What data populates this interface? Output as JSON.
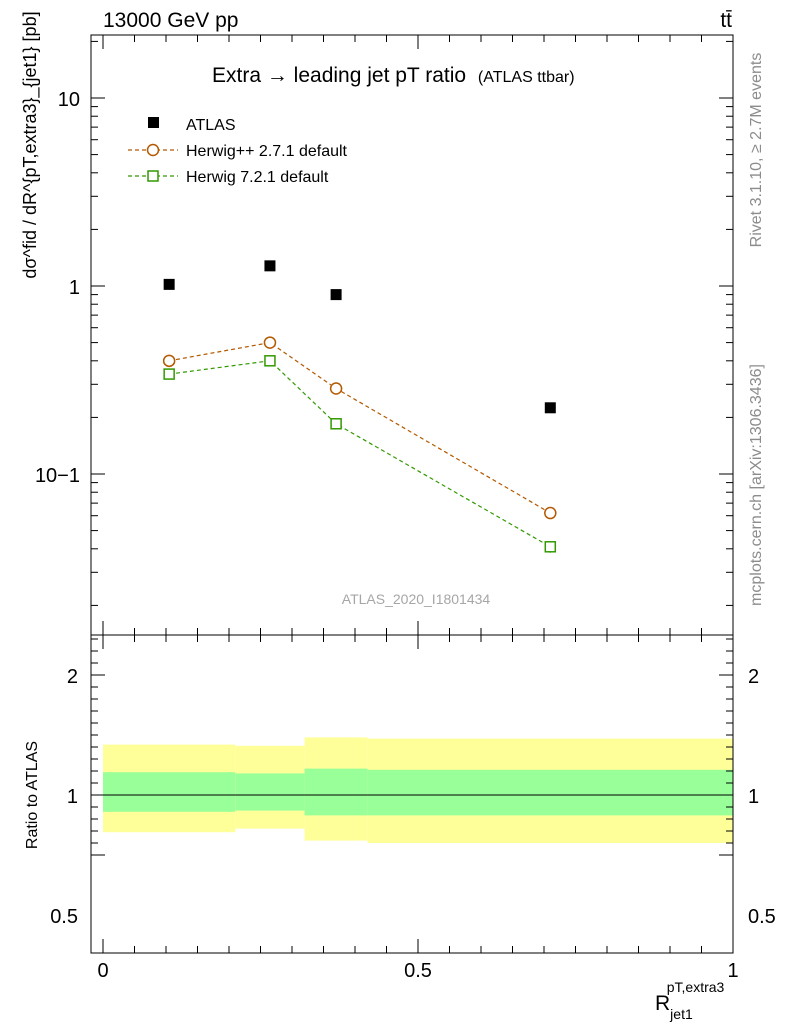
{
  "header": {
    "left_label": "13000 GeV pp",
    "right_label": "tt̄"
  },
  "side_labels": {
    "rivet": "Rivet 3.1.10, ≥ 2.7M events",
    "mcplots": "mcplots.cern.ch [arXiv:1306.3436]"
  },
  "chart_data": [
    {
      "type": "scatter",
      "title": "Extra → leading jet pT ratio",
      "title_suffix": "(ATLAS ttbar)",
      "watermark": "ATLAS_2020_I1801434",
      "ylabel": "dσ^fid / dR^{pT,extra3}_{jet1} [pb]",
      "yscale": "log",
      "ylim": [
        0.018,
        22
      ],
      "xlim": [
        -0.04,
        1.02
      ],
      "ytick_labels": [
        "10",
        "1",
        "10−1"
      ],
      "legend_position": "top-left",
      "colors": {
        "atlas": "#000000",
        "herwigpp": "#b35900",
        "herwig7": "#339900"
      },
      "series": [
        {
          "name": "ATLAS",
          "marker": "filled-square",
          "x": [
            0.105,
            0.265,
            0.37,
            0.71
          ],
          "y": [
            1.02,
            1.28,
            0.9,
            0.225
          ]
        },
        {
          "name": "Herwig++ 2.7.1 default",
          "marker": "open-circle",
          "line": "dashed",
          "x": [
            0.105,
            0.265,
            0.37,
            0.71
          ],
          "y": [
            0.4,
            0.5,
            0.285,
            0.062
          ]
        },
        {
          "name": "Herwig 7.2.1 default",
          "marker": "open-square",
          "line": "dashed",
          "x": [
            0.105,
            0.265,
            0.37,
            0.71
          ],
          "y": [
            0.34,
            0.4,
            0.185,
            0.041
          ]
        }
      ]
    },
    {
      "type": "area",
      "ylabel": "Ratio to ATLAS",
      "xlabel": "R jet1 pT,extra3",
      "ylim": [
        0.45,
        2.35
      ],
      "xlim": [
        -0.04,
        1.02
      ],
      "ytick_labels": [
        "2",
        "1",
        "0.5"
      ],
      "xtick_labels": [
        "0",
        "0.5",
        "1"
      ],
      "reference_line": 1,
      "colors": {
        "inner": "#99ff99",
        "outer": "#ffff99"
      },
      "bins": [
        {
          "x": [
            0.0,
            0.21
          ],
          "inner": [
            0.86,
            1.19
          ],
          "outer": [
            0.69,
            1.42
          ]
        },
        {
          "x": [
            0.21,
            0.32
          ],
          "inner": [
            0.87,
            1.18
          ],
          "outer": [
            0.72,
            1.41
          ]
        },
        {
          "x": [
            0.32,
            0.42
          ],
          "inner": [
            0.83,
            1.22
          ],
          "outer": [
            0.62,
            1.48
          ]
        },
        {
          "x": [
            0.42,
            1.0
          ],
          "inner": [
            0.83,
            1.21
          ],
          "outer": [
            0.6,
            1.47
          ]
        }
      ]
    }
  ]
}
